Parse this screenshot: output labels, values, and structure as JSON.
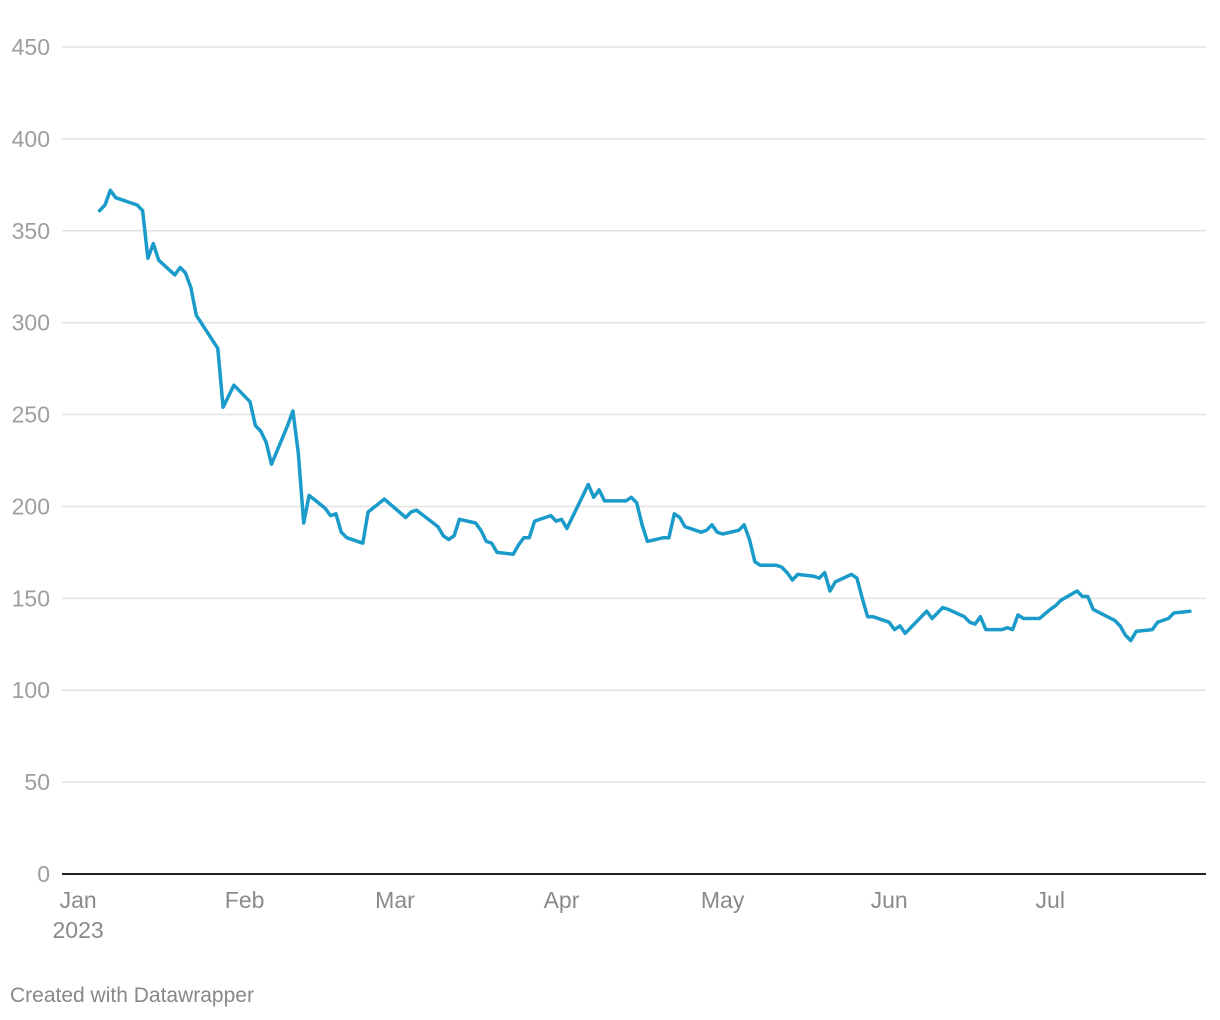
{
  "chart_data": {
    "type": "line",
    "title": "",
    "xlabel": "",
    "ylabel": "",
    "ylim": [
      0,
      450
    ],
    "y_ticks": [
      "0",
      "50",
      "100",
      "150",
      "200",
      "250",
      "300",
      "350",
      "400",
      "450"
    ],
    "x_ticks": [
      {
        "label": "Jan",
        "sub": "2023",
        "date": "2023-01-01"
      },
      {
        "label": "Feb",
        "sub": "",
        "date": "2023-02-01"
      },
      {
        "label": "Mar",
        "sub": "",
        "date": "2023-03-01"
      },
      {
        "label": "Apr",
        "sub": "",
        "date": "2023-04-01"
      },
      {
        "label": "May",
        "sub": "",
        "date": "2023-05-01"
      },
      {
        "label": "Jun",
        "sub": "",
        "date": "2023-06-01"
      },
      {
        "label": "Jul",
        "sub": "",
        "date": "2023-07-01"
      }
    ],
    "xlim": [
      "2022-12-29",
      "2023-07-30"
    ],
    "grid": true,
    "legend": "none",
    "line_color": "#1b9bc9",
    "series": [
      {
        "values": [
          [
            "2023-01-05",
            361
          ],
          [
            "2023-01-06",
            364
          ],
          [
            "2023-01-07",
            372
          ],
          [
            "2023-01-08",
            368
          ],
          [
            "2023-01-12",
            364
          ],
          [
            "2023-01-13",
            361
          ],
          [
            "2023-01-14",
            335
          ],
          [
            "2023-01-15",
            343
          ],
          [
            "2023-01-16",
            334
          ],
          [
            "2023-01-19",
            326
          ],
          [
            "2023-01-20",
            330
          ],
          [
            "2023-01-21",
            327
          ],
          [
            "2023-01-22",
            319
          ],
          [
            "2023-01-23",
            304
          ],
          [
            "2023-01-27",
            286
          ],
          [
            "2023-01-28",
            254
          ],
          [
            "2023-01-30",
            266
          ],
          [
            "2023-02-02",
            257
          ],
          [
            "2023-02-03",
            244
          ],
          [
            "2023-02-04",
            241
          ],
          [
            "2023-02-05",
            235
          ],
          [
            "2023-02-06",
            223
          ],
          [
            "2023-02-09",
            244
          ],
          [
            "2023-02-10",
            252
          ],
          [
            "2023-02-11",
            229
          ],
          [
            "2023-02-12",
            191
          ],
          [
            "2023-02-13",
            206
          ],
          [
            "2023-02-16",
            199
          ],
          [
            "2023-02-17",
            195
          ],
          [
            "2023-02-18",
            196
          ],
          [
            "2023-02-19",
            186
          ],
          [
            "2023-02-20",
            183
          ],
          [
            "2023-02-23",
            180
          ],
          [
            "2023-02-24",
            197
          ],
          [
            "2023-02-27",
            204
          ],
          [
            "2023-03-03",
            194
          ],
          [
            "2023-03-04",
            197
          ],
          [
            "2023-03-05",
            198
          ],
          [
            "2023-03-09",
            189
          ],
          [
            "2023-03-10",
            184
          ],
          [
            "2023-03-11",
            182
          ],
          [
            "2023-03-12",
            184
          ],
          [
            "2023-03-13",
            193
          ],
          [
            "2023-03-16",
            191
          ],
          [
            "2023-03-17",
            187
          ],
          [
            "2023-03-18",
            181
          ],
          [
            "2023-03-19",
            180
          ],
          [
            "2023-03-20",
            175
          ],
          [
            "2023-03-23",
            174
          ],
          [
            "2023-03-24",
            179
          ],
          [
            "2023-03-25",
            183
          ],
          [
            "2023-03-26",
            183
          ],
          [
            "2023-03-27",
            192
          ],
          [
            "2023-03-30",
            195
          ],
          [
            "2023-03-31",
            192
          ],
          [
            "2023-04-01",
            193
          ],
          [
            "2023-04-02",
            188
          ],
          [
            "2023-04-06",
            212
          ],
          [
            "2023-04-07",
            205
          ],
          [
            "2023-04-08",
            209
          ],
          [
            "2023-04-09",
            203
          ],
          [
            "2023-04-13",
            203
          ],
          [
            "2023-04-14",
            205
          ],
          [
            "2023-04-15",
            202
          ],
          [
            "2023-04-16",
            190
          ],
          [
            "2023-04-17",
            181
          ],
          [
            "2023-04-20",
            183
          ],
          [
            "2023-04-21",
            183
          ],
          [
            "2023-04-22",
            196
          ],
          [
            "2023-04-23",
            194
          ],
          [
            "2023-04-24",
            189
          ],
          [
            "2023-04-27",
            186
          ],
          [
            "2023-04-28",
            187
          ],
          [
            "2023-04-29",
            190
          ],
          [
            "2023-04-30",
            186
          ],
          [
            "2023-05-01",
            185
          ],
          [
            "2023-05-04",
            187
          ],
          [
            "2023-05-05",
            190
          ],
          [
            "2023-05-06",
            182
          ],
          [
            "2023-05-07",
            170
          ],
          [
            "2023-05-08",
            168
          ],
          [
            "2023-05-11",
            168
          ],
          [
            "2023-05-12",
            167
          ],
          [
            "2023-05-13",
            164
          ],
          [
            "2023-05-14",
            160
          ],
          [
            "2023-05-15",
            163
          ],
          [
            "2023-05-18",
            162
          ],
          [
            "2023-05-19",
            161
          ],
          [
            "2023-05-20",
            164
          ],
          [
            "2023-05-21",
            154
          ],
          [
            "2023-05-22",
            159
          ],
          [
            "2023-05-25",
            163
          ],
          [
            "2023-05-26",
            161
          ],
          [
            "2023-05-27",
            150
          ],
          [
            "2023-05-28",
            140
          ],
          [
            "2023-05-29",
            140
          ],
          [
            "2023-06-01",
            137
          ],
          [
            "2023-06-02",
            133
          ],
          [
            "2023-06-03",
            135
          ],
          [
            "2023-06-04",
            131
          ],
          [
            "2023-06-08",
            143
          ],
          [
            "2023-06-09",
            139
          ],
          [
            "2023-06-11",
            145
          ],
          [
            "2023-06-12",
            144
          ],
          [
            "2023-06-15",
            140
          ],
          [
            "2023-06-16",
            137
          ],
          [
            "2023-06-17",
            136
          ],
          [
            "2023-06-18",
            140
          ],
          [
            "2023-06-19",
            133
          ],
          [
            "2023-06-22",
            133
          ],
          [
            "2023-06-23",
            134
          ],
          [
            "2023-06-24",
            133
          ],
          [
            "2023-06-25",
            141
          ],
          [
            "2023-06-26",
            139
          ],
          [
            "2023-06-29",
            139
          ],
          [
            "2023-07-01",
            144
          ],
          [
            "2023-07-02",
            146
          ],
          [
            "2023-07-03",
            149
          ],
          [
            "2023-07-06",
            154
          ],
          [
            "2023-07-07",
            151
          ],
          [
            "2023-07-08",
            151
          ],
          [
            "2023-07-09",
            144
          ],
          [
            "2023-07-13",
            138
          ],
          [
            "2023-07-14",
            135
          ],
          [
            "2023-07-15",
            130
          ],
          [
            "2023-07-16",
            127
          ],
          [
            "2023-07-17",
            132
          ],
          [
            "2023-07-20",
            133
          ],
          [
            "2023-07-21",
            137
          ],
          [
            "2023-07-22",
            138
          ],
          [
            "2023-07-23",
            139
          ],
          [
            "2023-07-24",
            142
          ],
          [
            "2023-07-27",
            143
          ]
        ]
      }
    ]
  },
  "footer": {
    "credit": "Created with Datawrapper"
  }
}
